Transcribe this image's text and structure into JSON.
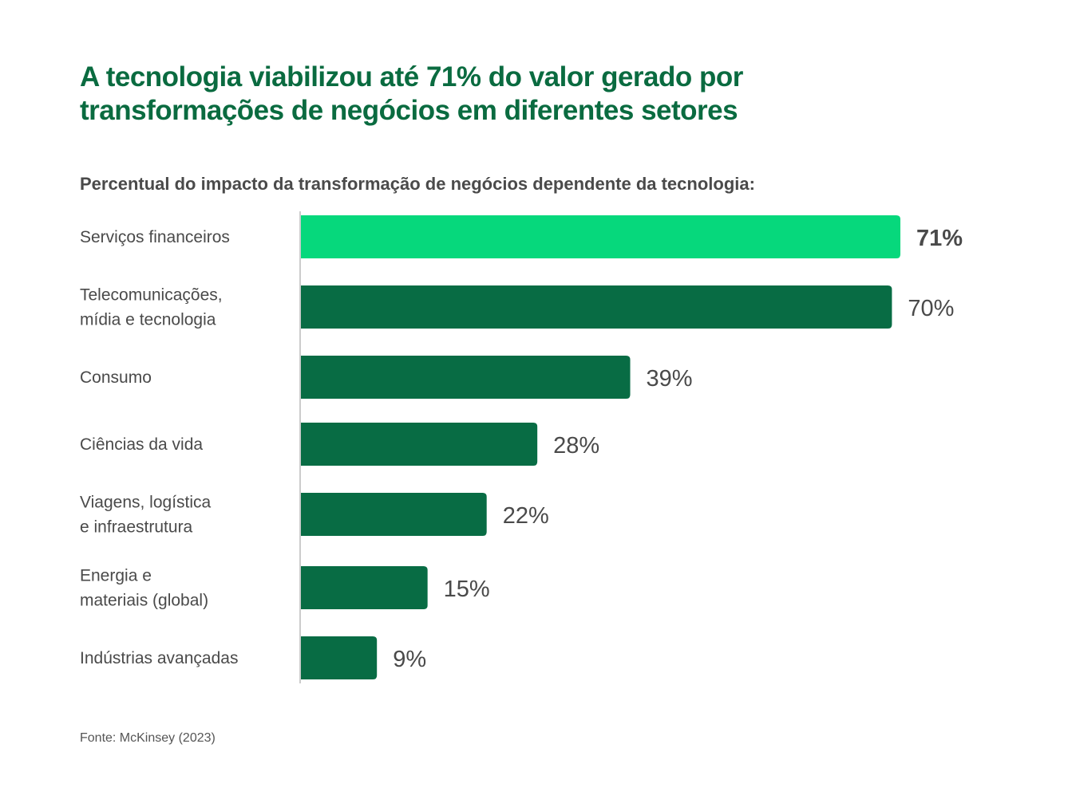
{
  "title": "A tecnologia viabilizou até 71% do valor gerado por transformações de negócios em diferentes setores",
  "title_lines": [
    "A tecnologia viabilizou até 71% do valor gerado por",
    "transformações de negócios em diferentes setores"
  ],
  "colors": {
    "highlight": "#06d87c",
    "bar": "#086c44",
    "title": "#0a6b40",
    "axis": "#cccccc"
  },
  "chart_data": {
    "type": "bar",
    "orientation": "horizontal",
    "title": "A tecnologia viabilizou até 71% do valor gerado por transformações de negócios em diferentes setores",
    "subtitle": "Percentual do impacto da transformação de negócios dependente da tecnologia:",
    "categories": [
      [
        "Serviços financeiros"
      ],
      [
        "Telecomunicações,",
        "mídia e tecnologia"
      ],
      [
        "Consumo"
      ],
      [
        "Ciências da vida"
      ],
      [
        "Viagens, logística",
        "e infraestrutura"
      ],
      [
        "Energia e",
        "materiais (global)"
      ],
      [
        "Indústrias avançadas"
      ]
    ],
    "values": [
      71,
      70,
      39,
      28,
      22,
      15,
      9
    ],
    "labels": [
      "71%",
      "70%",
      "39%",
      "28%",
      "22%",
      "15%",
      "9%"
    ],
    "highlight_index": 0,
    "xlabel": "",
    "ylabel": "",
    "xlim": [
      0,
      71
    ],
    "grid": false,
    "legend": "none",
    "source": "Fonte: McKinsey (2023)"
  }
}
